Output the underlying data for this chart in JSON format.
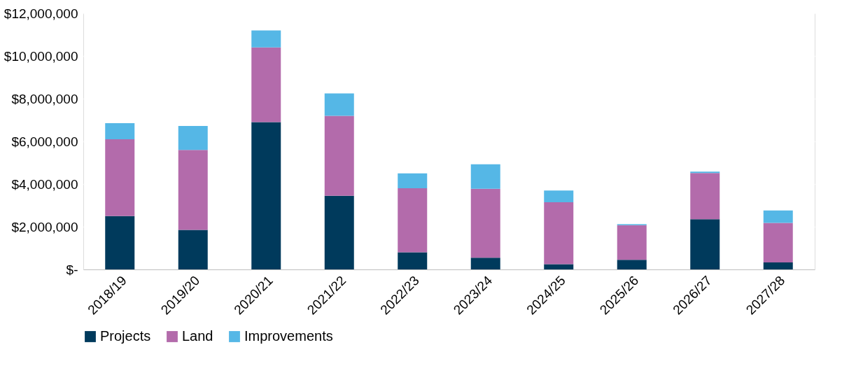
{
  "chart_data": {
    "type": "bar",
    "stacked": true,
    "categories": [
      "2018/19",
      "2019/20",
      "2020/21",
      "2021/22",
      "2022/23",
      "2023/24",
      "2024/25",
      "2025/26",
      "2026/27",
      "2027/28"
    ],
    "series": [
      {
        "name": "Projects",
        "color": "#003a5c",
        "values": [
          2500000,
          1850000,
          6900000,
          3450000,
          800000,
          550000,
          250000,
          450000,
          2350000,
          330000
        ]
      },
      {
        "name": "Land",
        "color": "#b36bab",
        "values": [
          3600000,
          3750000,
          3500000,
          3750000,
          3000000,
          3230000,
          2900000,
          1620000,
          2170000,
          1850000
        ]
      },
      {
        "name": "Improvements",
        "color": "#55b7e6",
        "values": [
          750000,
          1120000,
          800000,
          1050000,
          700000,
          1150000,
          550000,
          50000,
          60000,
          580000
        ]
      }
    ],
    "ylim": [
      0,
      12000000
    ],
    "yticks": [
      {
        "value": 0,
        "label": "$-"
      },
      {
        "value": 2000000,
        "label": "$2,000,000"
      },
      {
        "value": 4000000,
        "label": "$4,000,000"
      },
      {
        "value": 6000000,
        "label": "$6,000,000"
      },
      {
        "value": 8000000,
        "label": "$8,000,000"
      },
      {
        "value": 10000000,
        "label": "$10,000,000"
      },
      {
        "value": 12000000,
        "label": "$12,000,000"
      }
    ],
    "grid": "y",
    "legend": "bottom"
  }
}
